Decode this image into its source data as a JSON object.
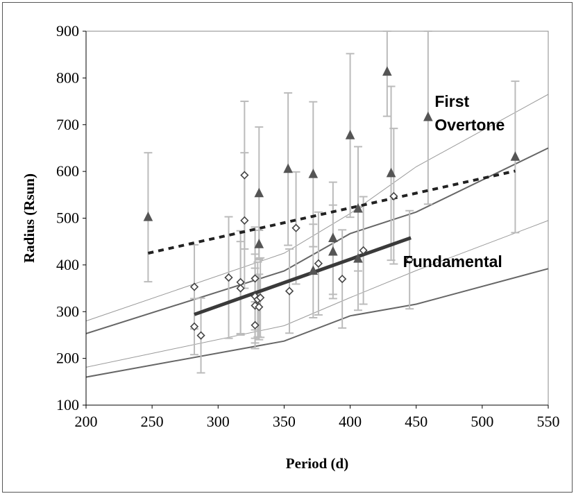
{
  "chart_data": {
    "type": "scatter",
    "xlabel": "Period (d)",
    "ylabel": "Radius (Rsun)",
    "xlim": [
      200,
      550
    ],
    "ylim": [
      100,
      900
    ],
    "xticks": [
      200,
      250,
      300,
      350,
      400,
      450,
      500,
      550
    ],
    "yticks": [
      100,
      200,
      300,
      400,
      500,
      600,
      700,
      800,
      900
    ],
    "grid": false,
    "annotations": [
      {
        "text": "First",
        "x": 464,
        "y": 738
      },
      {
        "text": "Overtone",
        "x": 464,
        "y": 688
      },
      {
        "text": "Fundamental",
        "x": 440,
        "y": 395
      }
    ],
    "colors": {
      "triangle": "#555555",
      "diamond": "#444444",
      "errorbar": "#bbbbbb",
      "band_light": "#999999",
      "band_dark": "#666666",
      "fit_solid": "#3a3a3a",
      "fit_dashed": "#222222",
      "axis": "#000000"
    },
    "series": [
      {
        "marker": "triangle",
        "points": [
          {
            "x": 247,
            "y": 502,
            "err": 138
          },
          {
            "x": 331,
            "y": 553,
            "err": 142
          },
          {
            "x": 331,
            "y": 444,
            "err": 30
          },
          {
            "x": 353,
            "y": 605,
            "err": 163
          },
          {
            "x": 372,
            "y": 594,
            "err": 155
          },
          {
            "x": 372,
            "y": 387,
            "err": 100
          },
          {
            "x": 387,
            "y": 457,
            "err": 120
          },
          {
            "x": 387,
            "y": 428,
            "err": 100
          },
          {
            "x": 400,
            "y": 677,
            "err": 175
          },
          {
            "x": 406,
            "y": 520,
            "err": 133
          },
          {
            "x": 406,
            "y": 413,
            "err": 110
          },
          {
            "x": 428,
            "y": 813,
            "err": 95
          },
          {
            "x": 431,
            "y": 596,
            "err": 186
          },
          {
            "x": 459,
            "y": 716,
            "err": 186
          },
          {
            "x": 525,
            "y": 631,
            "err": 162
          }
        ]
      },
      {
        "marker": "diamond",
        "points": [
          {
            "x": 282,
            "y": 353,
            "err": 90
          },
          {
            "x": 282,
            "y": 268,
            "err": 60
          },
          {
            "x": 287,
            "y": 249,
            "err": 80
          },
          {
            "x": 308,
            "y": 373,
            "err": 130
          },
          {
            "x": 317,
            "y": 363,
            "err": 110
          },
          {
            "x": 317,
            "y": 350,
            "err": 100
          },
          {
            "x": 320,
            "y": 592,
            "err": 158
          },
          {
            "x": 320,
            "y": 495,
            "err": 145
          },
          {
            "x": 328,
            "y": 371,
            "err": 110
          },
          {
            "x": 328,
            "y": 333,
            "err": 90
          },
          {
            "x": 328,
            "y": 313,
            "err": 80
          },
          {
            "x": 328,
            "y": 271,
            "err": 50
          },
          {
            "x": 330,
            "y": 326,
            "err": 80
          },
          {
            "x": 331,
            "y": 310,
            "err": 70
          },
          {
            "x": 332,
            "y": 330,
            "err": 85
          },
          {
            "x": 354,
            "y": 344,
            "err": 90
          },
          {
            "x": 359,
            "y": 479,
            "err": 120
          },
          {
            "x": 376,
            "y": 403,
            "err": 110
          },
          {
            "x": 394,
            "y": 370,
            "err": 105
          },
          {
            "x": 410,
            "y": 431,
            "err": 115
          },
          {
            "x": 433,
            "y": 547,
            "err": 145
          },
          {
            "x": 445,
            "y": 411,
            "err": 105
          }
        ]
      }
    ],
    "lines": [
      {
        "kind": "fit-triangle",
        "style": "dashed",
        "x": [
          247,
          525
        ],
        "y": [
          425,
          601
        ]
      },
      {
        "kind": "fit-diamond",
        "style": "solid-thick",
        "x": [
          282,
          446
        ],
        "y": [
          294,
          458
        ]
      },
      {
        "kind": "first-overtone-upper",
        "style": "thin",
        "x": [
          200,
          350,
          400,
          450,
          550
        ],
        "y": [
          280,
          425,
          510,
          610,
          765
        ]
      },
      {
        "kind": "first-overtone-lower",
        "style": "medium",
        "x": [
          200,
          350,
          400,
          450,
          550
        ],
        "y": [
          253,
          387,
          467,
          513,
          650
        ]
      },
      {
        "kind": "fundamental-upper",
        "style": "thin",
        "x": [
          200,
          350,
          400,
          450,
          550
        ],
        "y": [
          181,
          270,
          330,
          388,
          495
        ]
      },
      {
        "kind": "fundamental-lower",
        "style": "medium",
        "x": [
          200,
          350,
          400,
          450,
          550
        ],
        "y": [
          160,
          237,
          291,
          316,
          392
        ]
      }
    ]
  }
}
